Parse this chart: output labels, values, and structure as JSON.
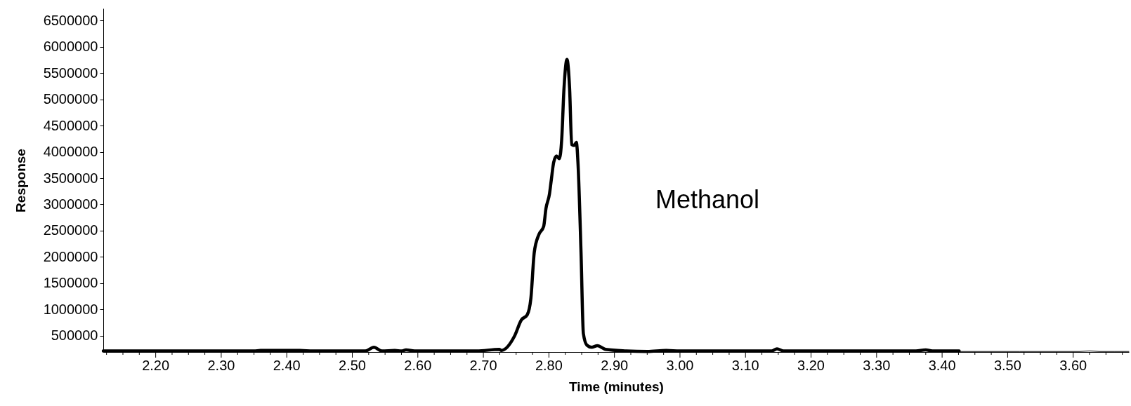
{
  "chart_data": {
    "type": "line",
    "xlabel": "Time (minutes)",
    "ylabel": "Response",
    "annotations": [
      "Methanol"
    ],
    "xlim": [
      2.12,
      3.685
    ],
    "ylim": [
      190000,
      6730000
    ],
    "xticks": [
      {
        "value": 2.125,
        "label": null
      },
      {
        "value": 2.15,
        "label": null
      },
      {
        "value": 2.175,
        "label": null
      },
      {
        "value": 2.2,
        "label": "2.20"
      },
      {
        "value": 2.225,
        "label": null
      },
      {
        "value": 2.25,
        "label": null
      },
      {
        "value": 2.275,
        "label": null
      },
      {
        "value": 2.3,
        "label": "2.30"
      },
      {
        "value": 2.325,
        "label": null
      },
      {
        "value": 2.35,
        "label": null
      },
      {
        "value": 2.375,
        "label": null
      },
      {
        "value": 2.4,
        "label": "2.40"
      },
      {
        "value": 2.425,
        "label": null
      },
      {
        "value": 2.45,
        "label": null
      },
      {
        "value": 2.475,
        "label": null
      },
      {
        "value": 2.5,
        "label": "2.50"
      },
      {
        "value": 2.525,
        "label": null
      },
      {
        "value": 2.55,
        "label": null
      },
      {
        "value": 2.575,
        "label": null
      },
      {
        "value": 2.6,
        "label": "2.60"
      },
      {
        "value": 2.625,
        "label": null
      },
      {
        "value": 2.65,
        "label": null
      },
      {
        "value": 2.675,
        "label": null
      },
      {
        "value": 2.7,
        "label": "2.70"
      },
      {
        "value": 2.725,
        "label": null
      },
      {
        "value": 2.75,
        "label": null
      },
      {
        "value": 2.775,
        "label": null
      },
      {
        "value": 2.8,
        "label": "2.80"
      },
      {
        "value": 2.825,
        "label": null
      },
      {
        "value": 2.85,
        "label": null
      },
      {
        "value": 2.875,
        "label": null
      },
      {
        "value": 2.9,
        "label": "2.90"
      },
      {
        "value": 2.925,
        "label": null
      },
      {
        "value": 2.95,
        "label": null
      },
      {
        "value": 2.975,
        "label": null
      },
      {
        "value": 3.0,
        "label": "3.00"
      },
      {
        "value": 3.025,
        "label": null
      },
      {
        "value": 3.05,
        "label": null
      },
      {
        "value": 3.075,
        "label": null
      },
      {
        "value": 3.1,
        "label": "3.10"
      },
      {
        "value": 3.125,
        "label": null
      },
      {
        "value": 3.15,
        "label": null
      },
      {
        "value": 3.175,
        "label": null
      },
      {
        "value": 3.2,
        "label": "3.20"
      },
      {
        "value": 3.225,
        "label": null
      },
      {
        "value": 3.25,
        "label": null
      },
      {
        "value": 3.275,
        "label": null
      },
      {
        "value": 3.3,
        "label": "3.30"
      },
      {
        "value": 3.325,
        "label": null
      },
      {
        "value": 3.35,
        "label": null
      },
      {
        "value": 3.375,
        "label": null
      },
      {
        "value": 3.4,
        "label": "3.40"
      },
      {
        "value": 3.425,
        "label": null
      },
      {
        "value": 3.45,
        "label": null
      },
      {
        "value": 3.475,
        "label": null
      },
      {
        "value": 3.5,
        "label": "3.50"
      },
      {
        "value": 3.525,
        "label": null
      },
      {
        "value": 3.55,
        "label": null
      },
      {
        "value": 3.575,
        "label": null
      },
      {
        "value": 3.6,
        "label": "3.60"
      },
      {
        "value": 3.625,
        "label": null
      },
      {
        "value": 3.65,
        "label": null
      },
      {
        "value": 3.675,
        "label": null
      }
    ],
    "yticks": [
      500000,
      1000000,
      1500000,
      2000000,
      2500000,
      3000000,
      3500000,
      4000000,
      4500000,
      5000000,
      5500000,
      6000000,
      6500000
    ],
    "grid": false,
    "legend": false,
    "marker": "none",
    "line_style": "solid",
    "series": [
      {
        "color": "#000000",
        "x": [
          2.12,
          2.35,
          2.36,
          2.42,
          2.44,
          2.52,
          2.533,
          2.545,
          2.565,
          2.575,
          2.582,
          2.595,
          2.69,
          2.7243,
          2.7275,
          2.7474,
          2.758,
          2.767,
          2.7724,
          2.7777,
          2.7848,
          2.792,
          2.7955,
          2.8009,
          2.8037,
          2.8073,
          2.8116,
          2.8159,
          2.8195,
          2.823,
          2.8276,
          2.8316,
          2.8348,
          2.8384,
          2.8419,
          2.8444,
          2.849,
          2.8526,
          2.858,
          2.865,
          2.874,
          2.8865,
          2.918,
          2.95,
          2.979,
          3.0,
          3.14,
          3.148,
          3.158,
          3.23,
          3.36,
          3.375,
          3.385,
          3.426
        ],
        "values": [
          210000,
          210000,
          220000,
          220000,
          210000,
          210000,
          280000,
          210000,
          220000,
          210000,
          230000,
          210000,
          210000,
          240000,
          220000,
          490000,
          800000,
          900000,
          1200000,
          2090000,
          2430000,
          2580000,
          2920000,
          3200000,
          3470000,
          3800000,
          3920000,
          3870000,
          4230000,
          5200000,
          5760000,
          5200000,
          4140000,
          4120000,
          4180000,
          3780000,
          2090000,
          540000,
          320000,
          280000,
          310000,
          240000,
          210000,
          200000,
          220000,
          210000,
          210000,
          250000,
          210000,
          210000,
          210000,
          230000,
          210000,
          210000
        ]
      },
      {
        "color": "#000000",
        "x": [
          3.426,
          3.61,
          3.625,
          3.64,
          3.685
        ],
        "values": [
          200000,
          200000,
          210000,
          200000,
          200000
        ]
      }
    ]
  }
}
